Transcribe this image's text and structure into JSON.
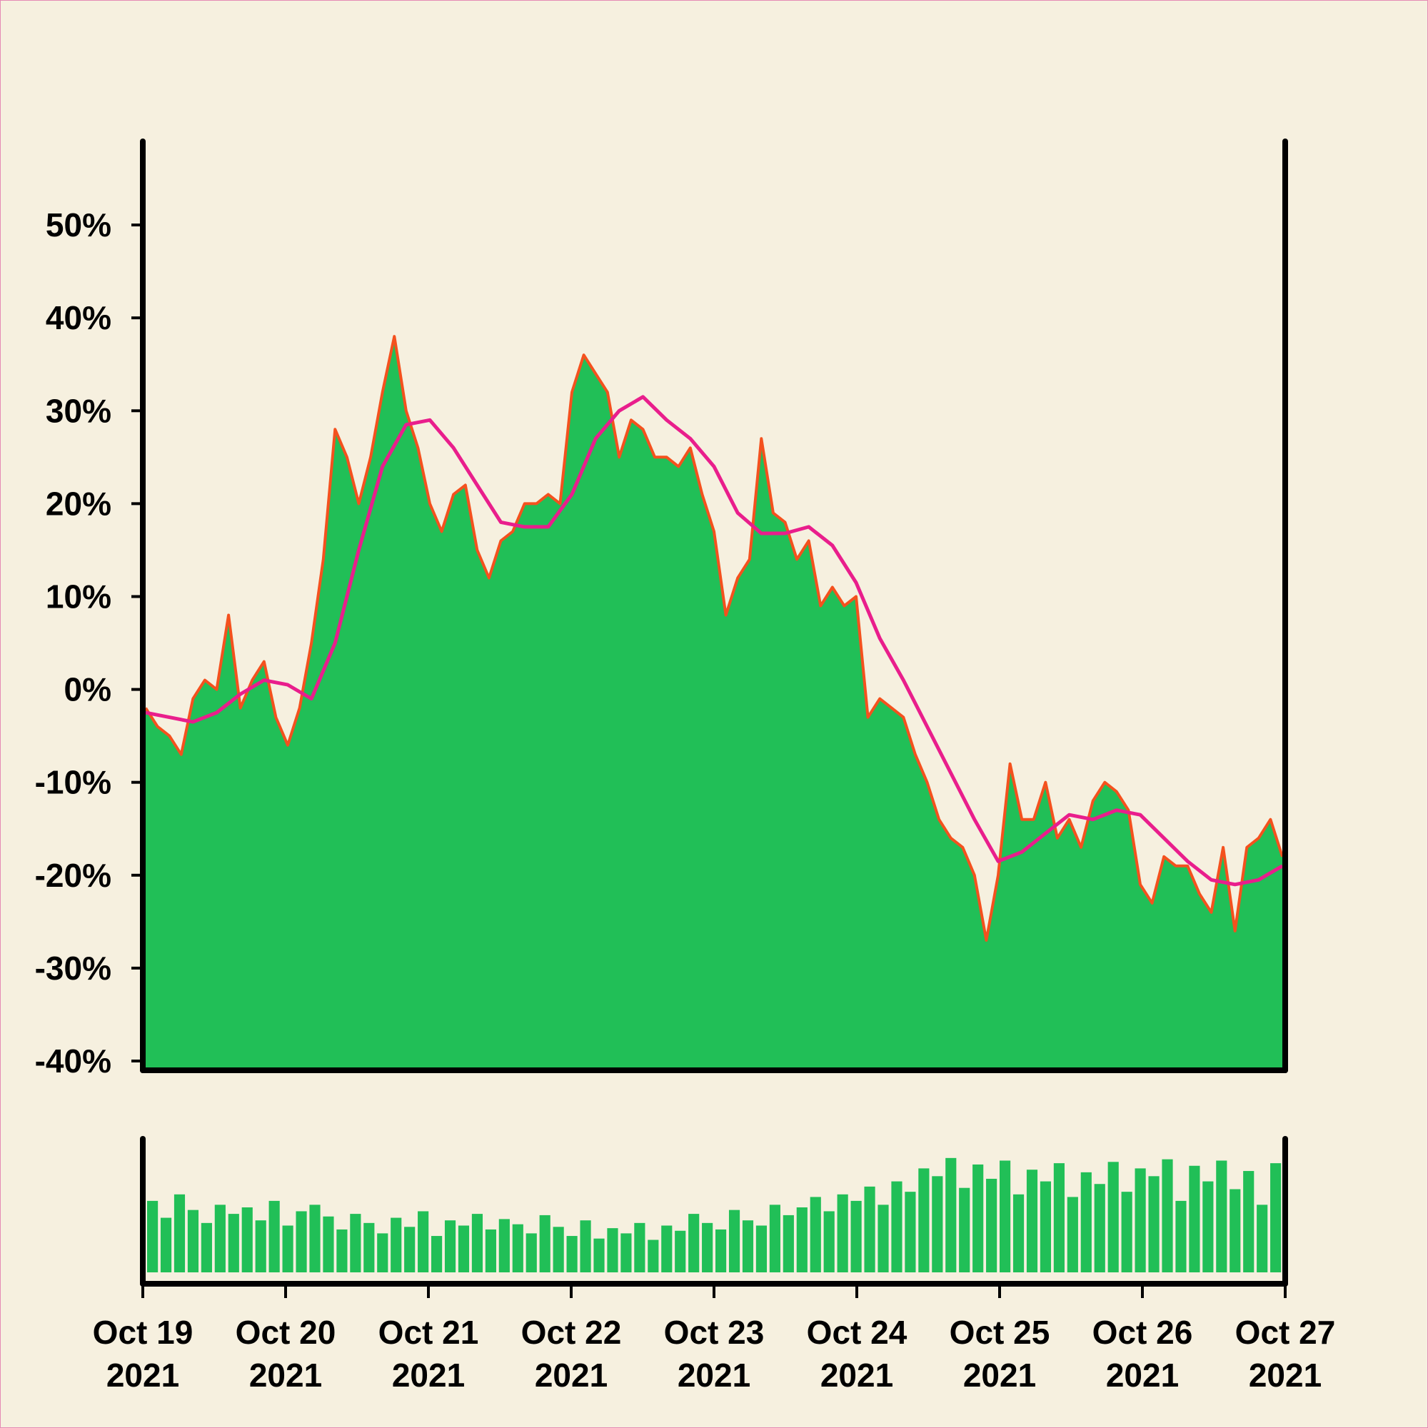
{
  "chart_data": [
    {
      "type": "area",
      "xlim": [
        "2021-10-19",
        "2021-10-27"
      ],
      "xticks": [
        {
          "value": "2021-10-19",
          "label": [
            "Oct 19",
            "2021"
          ]
        },
        {
          "value": "2021-10-20",
          "label": [
            "Oct 20",
            "2021"
          ]
        },
        {
          "value": "2021-10-21",
          "label": [
            "Oct 21",
            "2021"
          ]
        },
        {
          "value": "2021-10-22",
          "label": [
            "Oct 22",
            "2021"
          ]
        },
        {
          "value": "2021-10-23",
          "label": [
            "Oct 23",
            "2021"
          ]
        },
        {
          "value": "2021-10-24",
          "label": [
            "Oct 24",
            "2021"
          ]
        },
        {
          "value": "2021-10-25",
          "label": [
            "Oct 25",
            "2021"
          ]
        },
        {
          "value": "2021-10-26",
          "label": [
            "Oct 26",
            "2021"
          ]
        },
        {
          "value": "2021-10-27",
          "label": [
            "Oct 27",
            "2021"
          ]
        }
      ],
      "ylim": [
        -41,
        59
      ],
      "yticks": [
        {
          "value": -40,
          "label": "-40%"
        },
        {
          "value": -30,
          "label": "-30%"
        },
        {
          "value": -20,
          "label": "-20%"
        },
        {
          "value": -10,
          "label": "-10%"
        },
        {
          "value": 0,
          "label": "0%"
        },
        {
          "value": 10,
          "label": "10%"
        },
        {
          "value": 20,
          "label": "20%"
        },
        {
          "value": 30,
          "label": "30%"
        },
        {
          "value": 40,
          "label": "40%"
        },
        {
          "value": 50,
          "label": "50%"
        }
      ],
      "series": [
        {
          "type": "area",
          "color": "#21bf57",
          "line_color": "#f4511e",
          "values": [
            -2,
            -4,
            -5,
            -7,
            -1,
            1,
            0,
            8,
            -2,
            1,
            3,
            -3,
            -6,
            -2,
            5,
            14,
            28,
            25,
            20,
            25,
            32,
            38,
            30,
            26,
            20,
            17,
            21,
            22,
            15,
            12,
            16,
            17,
            20,
            20,
            21,
            20,
            32,
            36,
            34,
            32,
            25,
            29,
            28,
            25,
            25,
            24,
            26,
            21,
            17,
            8,
            12,
            14,
            27,
            19,
            18,
            14,
            16,
            9,
            11,
            9,
            10,
            -3,
            -1,
            -2,
            -3,
            -7,
            -10,
            -14,
            -16,
            -17,
            -20,
            -27,
            -20,
            -8,
            -14,
            -14,
            -10,
            -16,
            -14,
            -17,
            -12,
            -10,
            -11,
            -13,
            -21,
            -23,
            -18,
            -19,
            -19,
            -22,
            -24,
            -17,
            -26,
            -17,
            -16,
            -14,
            -18
          ]
        },
        {
          "type": "line",
          "color": "#e91e8c",
          "values": [
            -2.5,
            -3,
            -3.5,
            -2.5,
            -0.5,
            1,
            0.5,
            -1,
            5,
            15,
            24,
            28.5,
            29,
            26,
            22,
            18,
            17.5,
            17.5,
            21,
            27,
            30,
            31.5,
            29,
            27,
            24,
            19,
            16.8,
            16.8,
            17.5,
            15.5,
            11.5,
            5.5,
            1,
            -4,
            -9,
            -14,
            -18.5,
            -17.5,
            -15.5,
            -13.5,
            -14,
            -13,
            -13.5,
            -16,
            -18.5,
            -20.5,
            -21,
            -20.5,
            -19
          ]
        }
      ]
    },
    {
      "type": "bar",
      "color": "#21bf57",
      "ylim": [
        0,
        100
      ],
      "values": [
        55,
        42,
        60,
        48,
        38,
        52,
        45,
        50,
        40,
        55,
        36,
        47,
        52,
        43,
        33,
        45,
        38,
        30,
        42,
        35,
        47,
        28,
        40,
        36,
        45,
        33,
        41,
        37,
        30,
        44,
        35,
        28,
        40,
        26,
        34,
        30,
        38,
        25,
        36,
        32,
        45,
        38,
        33,
        48,
        40,
        36,
        52,
        44,
        50,
        58,
        47,
        60,
        55,
        66,
        52,
        70,
        62,
        80,
        74,
        88,
        65,
        83,
        72,
        86,
        60,
        79,
        70,
        84,
        58,
        77,
        68,
        85,
        62,
        80,
        74,
        87,
        55,
        82,
        70,
        86,
        64,
        78,
        52,
        84
      ]
    }
  ]
}
